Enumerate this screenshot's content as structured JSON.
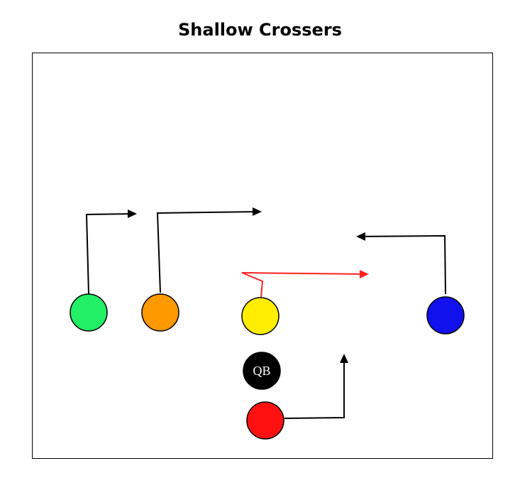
{
  "title": "Shallow Crossers",
  "players": [
    {
      "id": "left-wr",
      "color": "#22ee66",
      "label": ""
    },
    {
      "id": "slot-wr",
      "color": "#ff9900",
      "label": ""
    },
    {
      "id": "center",
      "color": "#ffee00",
      "label": ""
    },
    {
      "id": "right-wr",
      "color": "#1111ee",
      "label": ""
    },
    {
      "id": "quarterback",
      "color": "#000000",
      "label": "QB"
    },
    {
      "id": "running-back",
      "color": "#ff1111",
      "label": ""
    }
  ],
  "routes": [
    {
      "player": "left-wr",
      "color": "#000000",
      "direction": "right"
    },
    {
      "player": "slot-wr",
      "color": "#000000",
      "direction": "right"
    },
    {
      "player": "center",
      "color": "#ff2222",
      "direction": "right"
    },
    {
      "player": "right-wr",
      "color": "#000000",
      "direction": "left"
    },
    {
      "player": "running-back",
      "color": "#000000",
      "direction": "up"
    }
  ]
}
